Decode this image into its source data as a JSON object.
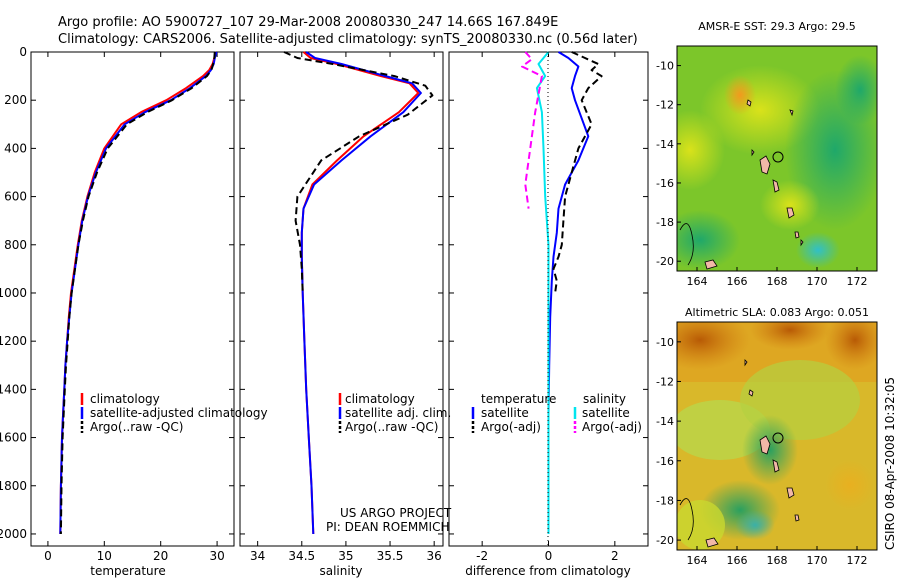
{
  "header": {
    "line1": "Argo profile: AO 5900727_107 29-Mar-2008 20080330_247 14.66S 167.849E",
    "line2": "Climatology: CARS2006. Satellite-adjusted climatology: synTS_20080330.nc (0.56d later)"
  },
  "side_stamp": "CSIRO 08-Apr-2008 10:32:05",
  "project_credit": {
    "line1": "US ARGO PROJECT",
    "line2": "PI: DEAN ROEMMICH"
  },
  "colors": {
    "climatology": "#ff0000",
    "satellite": "#0000ff",
    "argo": "#000000",
    "sal_satellite": "#00e5ee",
    "sal_argo": "#ff00ff"
  },
  "chart_data": [
    {
      "type": "line",
      "panel": "temperature",
      "xlabel": "temperature",
      "ylabel": "",
      "xlim": [
        -3,
        33
      ],
      "ylim": [
        2050,
        0
      ],
      "y_inverted": true,
      "xticks": [
        0,
        10,
        20,
        30
      ],
      "yticks": [
        0,
        200,
        400,
        600,
        800,
        1000,
        1200,
        1400,
        1600,
        1800,
        2000
      ],
      "legend": [
        "climatology",
        "satellite-adjusted climatology",
        "Argo(..raw -QC)"
      ],
      "legend_position": "bottom-center",
      "series": [
        {
          "name": "climatology",
          "style": "solid",
          "color": "#ff0000",
          "x": [
            29.8,
            29.5,
            29.2,
            28.6,
            27.5,
            24.5,
            21.0,
            16.5,
            13.0,
            10.0,
            8.3,
            7.0,
            6.0,
            5.3,
            4.7,
            4.1,
            3.7,
            3.4,
            3.1,
            2.9,
            2.7,
            2.5,
            2.3,
            2.2
          ],
          "y": [
            0,
            25,
            50,
            75,
            100,
            150,
            200,
            250,
            300,
            400,
            500,
            600,
            700,
            800,
            900,
            1000,
            1100,
            1200,
            1300,
            1400,
            1500,
            1600,
            1800,
            2000
          ]
        },
        {
          "name": "satellite-adjusted climatology",
          "style": "solid",
          "color": "#0000ff",
          "x": [
            29.9,
            29.6,
            29.4,
            28.9,
            28.0,
            25.2,
            21.8,
            17.2,
            13.6,
            10.3,
            8.5,
            7.1,
            6.1,
            5.4,
            4.8,
            4.2,
            3.8,
            3.4,
            3.1,
            2.9,
            2.7,
            2.5,
            2.3,
            2.2
          ],
          "y": [
            0,
            25,
            50,
            75,
            100,
            150,
            200,
            250,
            300,
            400,
            500,
            600,
            700,
            800,
            900,
            1000,
            1100,
            1200,
            1300,
            1400,
            1500,
            1600,
            1800,
            2000
          ]
        },
        {
          "name": "Argo(..raw -QC)",
          "style": "dashed",
          "color": "#000000",
          "x": [
            29.6,
            29.5,
            29.3,
            29.0,
            28.2,
            25.5,
            22.0,
            17.6,
            14.0,
            10.6,
            8.7,
            7.2,
            6.2,
            5.4,
            4.8,
            4.2,
            3.8,
            3.5,
            3.2,
            3.0,
            2.8,
            2.6,
            2.4,
            2.3
          ],
          "y": [
            0,
            25,
            50,
            75,
            100,
            150,
            200,
            250,
            300,
            400,
            500,
            600,
            700,
            800,
            900,
            1000,
            1100,
            1200,
            1300,
            1400,
            1500,
            1600,
            1800,
            2000
          ]
        }
      ]
    },
    {
      "type": "line",
      "panel": "salinity",
      "xlabel": "salinity",
      "ylabel": "",
      "xlim": [
        33.8,
        36.1
      ],
      "ylim": [
        2050,
        0
      ],
      "y_inverted": true,
      "xticks": [
        34,
        34.5,
        35,
        35.5,
        36
      ],
      "legend": [
        "climatology",
        "satellite adj. clim.",
        "Argo(..raw -QC)"
      ],
      "legend_position": "bottom-center",
      "series": [
        {
          "name": "climatology",
          "style": "solid",
          "color": "#ff0000",
          "x": [
            34.52,
            34.6,
            34.9,
            35.4,
            35.72,
            35.82,
            35.6,
            35.2,
            34.9,
            34.62,
            34.52,
            34.5,
            34.5,
            34.51,
            34.53,
            34.55,
            34.58,
            34.61,
            34.63
          ],
          "y": [
            0,
            25,
            50,
            100,
            130,
            170,
            250,
            350,
            450,
            550,
            650,
            750,
            850,
            1000,
            1200,
            1400,
            1600,
            1800,
            2000
          ]
        },
        {
          "name": "satellite adj. clim.",
          "style": "solid",
          "color": "#0000ff",
          "x": [
            34.55,
            34.65,
            34.95,
            35.45,
            35.75,
            35.85,
            35.65,
            35.28,
            34.95,
            34.64,
            34.52,
            34.5,
            34.5,
            34.51,
            34.53,
            34.55,
            34.58,
            34.61,
            34.63
          ],
          "y": [
            0,
            25,
            50,
            100,
            130,
            170,
            250,
            350,
            450,
            550,
            650,
            750,
            850,
            1000,
            1200,
            1400,
            1600,
            1800,
            2000
          ]
        },
        {
          "name": "Argo(..raw -QC)",
          "style": "dashed",
          "color": "#000000",
          "x": [
            34.3,
            34.45,
            34.85,
            35.55,
            35.9,
            35.98,
            35.7,
            35.15,
            34.72,
            34.45,
            34.43,
            34.48,
            34.5,
            34.51
          ],
          "y": [
            0,
            25,
            50,
            100,
            140,
            180,
            260,
            350,
            450,
            600,
            700,
            800,
            900,
            1000
          ]
        }
      ]
    },
    {
      "type": "line",
      "panel": "difference",
      "xlabel": "difference from climatology",
      "ylabel": "",
      "xlim": [
        -3,
        3
      ],
      "ylim": [
        2050,
        0
      ],
      "y_inverted": true,
      "xticks": [
        -2,
        0,
        2
      ],
      "legend_columns": [
        {
          "title": "temperature",
          "entries": [
            "satellite",
            "Argo(-adj)"
          ]
        },
        {
          "title": "salinity",
          "entries": [
            "satellite",
            "Argo(-adj)"
          ]
        }
      ],
      "legend_position": "bottom",
      "series": [
        {
          "name": "temperature satellite",
          "style": "solid",
          "color": "#0000ff",
          "x": [
            0.3,
            0.6,
            0.9,
            0.8,
            0.7,
            0.8,
            1.2,
            0.9,
            0.5,
            0.3,
            0.25,
            0.15,
            0.1,
            0.05,
            0.02,
            0.0,
            0.0,
            0.0,
            0.0
          ],
          "y": [
            0,
            25,
            60,
            100,
            150,
            200,
            350,
            450,
            550,
            650,
            750,
            850,
            950,
            1100,
            1300,
            1500,
            1700,
            1900,
            2000
          ]
        },
        {
          "name": "temperature Argo(-adj)",
          "style": "dashed",
          "color": "#000000",
          "x": [
            0.7,
            1.1,
            1.5,
            1.3,
            1.6,
            1.2,
            1.0,
            1.3,
            0.9,
            0.7,
            0.5,
            0.45,
            0.4,
            0.3,
            0.15,
            0.25,
            0.2
          ],
          "y": [
            0,
            25,
            50,
            75,
            100,
            150,
            200,
            300,
            400,
            500,
            600,
            700,
            800,
            850,
            900,
            950,
            1000
          ]
        },
        {
          "name": "salinity satellite",
          "style": "solid",
          "color": "#00e5ee",
          "x": [
            0.0,
            -0.3,
            -0.1,
            -0.35,
            -0.2,
            -0.15,
            -0.1,
            0.0,
            0.0,
            0.0,
            0.0,
            0.0,
            0.0
          ],
          "y": [
            0,
            50,
            100,
            150,
            250,
            400,
            600,
            800,
            1000,
            1200,
            1500,
            1800,
            2000
          ]
        },
        {
          "name": "salinity Argo(-adj)",
          "style": "dashed",
          "color": "#ff00ff",
          "x": [
            -0.7,
            -0.5,
            -0.8,
            -0.2,
            -0.4,
            -0.5,
            -0.6,
            -0.7,
            -0.6
          ],
          "y": [
            0,
            30,
            60,
            100,
            250,
            350,
            450,
            550,
            650
          ]
        }
      ]
    }
  ],
  "maps": [
    {
      "title": "AMSR-E SST: 29.3 Argo: 29.5",
      "xticks": [
        "164",
        "166",
        "168",
        "170",
        "172"
      ],
      "yticks": [
        "-10",
        "-12",
        "-14",
        "-16",
        "-18",
        "-20"
      ],
      "lon_range": [
        163,
        173
      ],
      "lat_range": [
        -20.5,
        -9
      ]
    },
    {
      "title": "Altimetric SLA: 0.083 Argo: 0.051",
      "xticks": [
        "164",
        "166",
        "168",
        "170",
        "172"
      ],
      "yticks": [
        "-10",
        "-12",
        "-14",
        "-16",
        "-18",
        "-20"
      ],
      "lon_range": [
        163,
        173
      ],
      "lat_range": [
        -20.5,
        -9
      ]
    }
  ]
}
